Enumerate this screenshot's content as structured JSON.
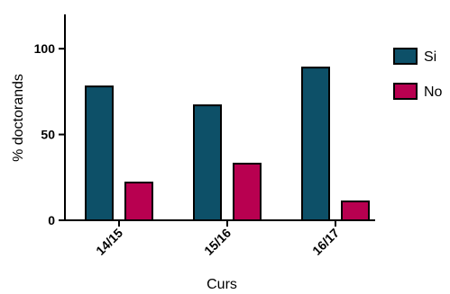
{
  "chart_data": {
    "type": "bar",
    "title": "",
    "xlabel": "Curs",
    "ylabel": "% doctorands",
    "categories": [
      "14/15",
      "15/16",
      "16/17"
    ],
    "series": [
      {
        "name": "Si",
        "values": [
          78,
          67,
          89
        ],
        "color": "#0d5068"
      },
      {
        "name": "No",
        "values": [
          22,
          33,
          11
        ],
        "color": "#b80050"
      }
    ],
    "ylim": [
      0,
      120
    ],
    "yticks": [
      0,
      50,
      100
    ],
    "legend": "right",
    "grid": false
  }
}
